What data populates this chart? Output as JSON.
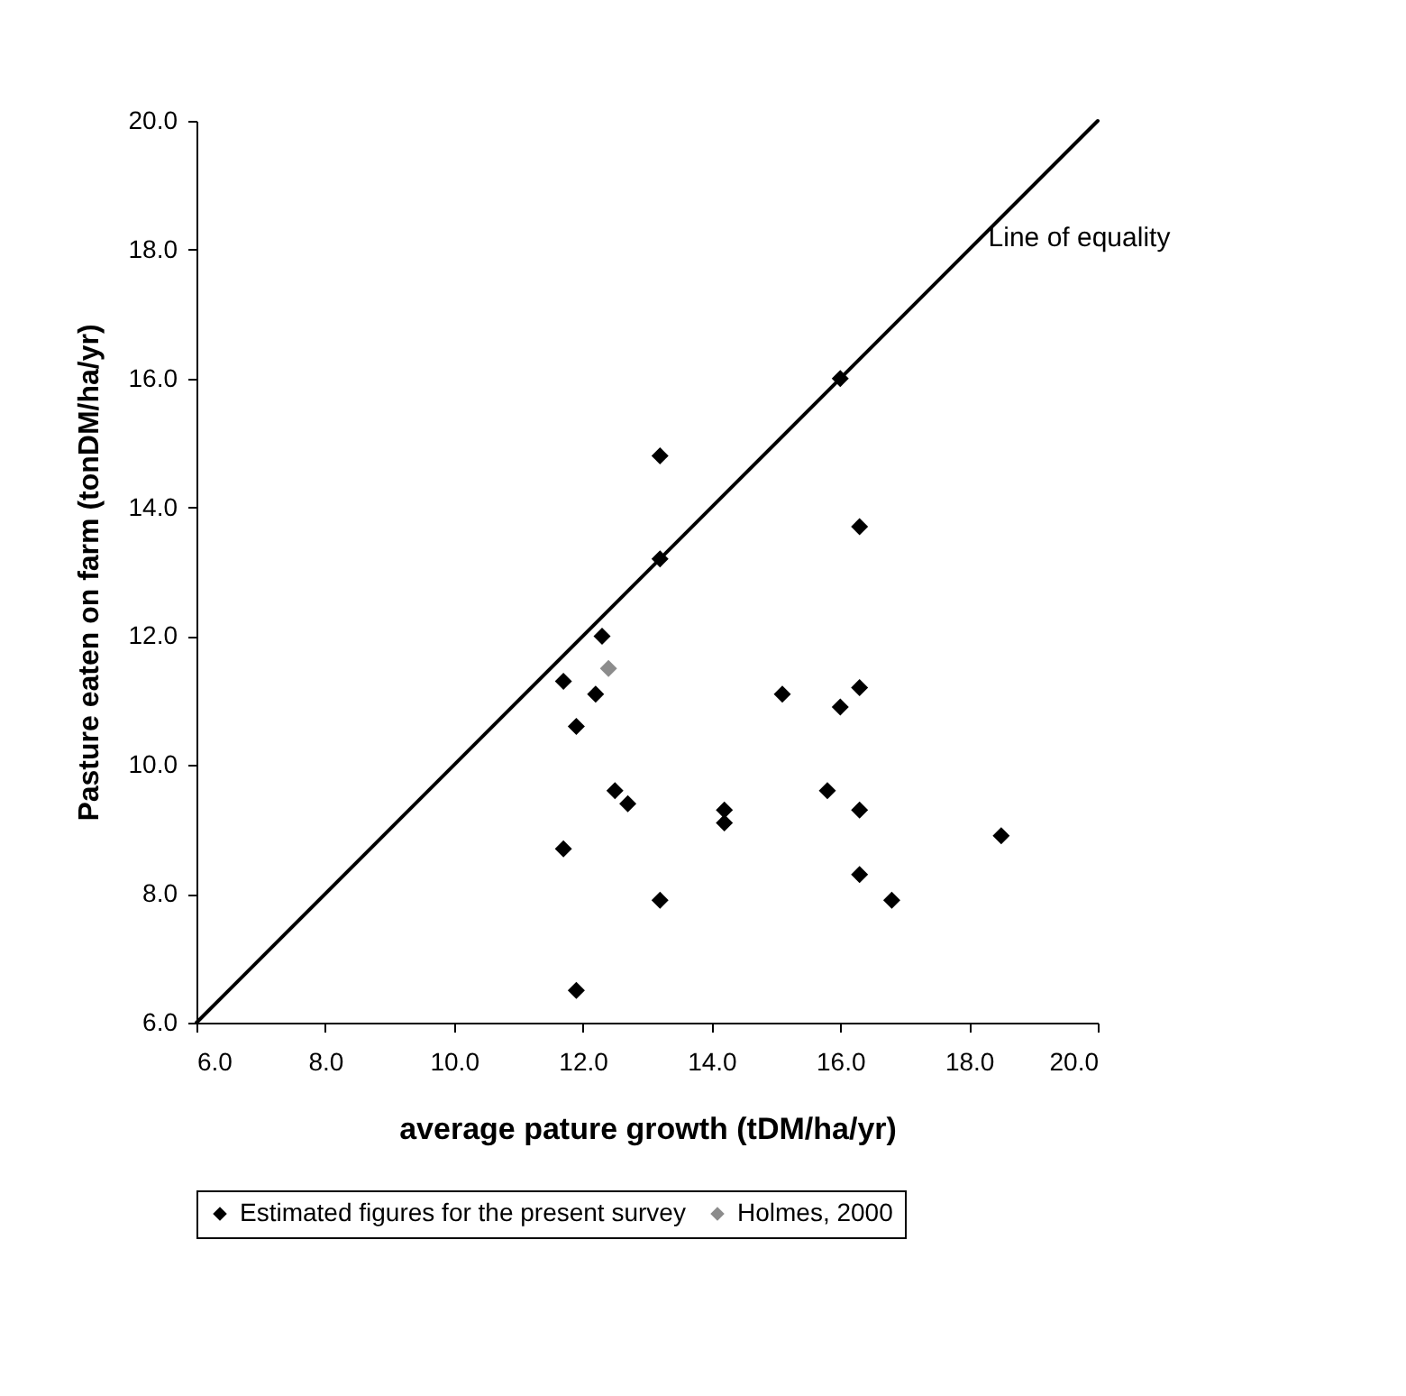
{
  "chart_data": {
    "type": "scatter",
    "xlabel": "average pature growth (tDM/ha/yr)",
    "ylabel": "Pasture eaten on farm (tonDM/ha/yr)",
    "xlim": [
      6,
      20
    ],
    "ylim": [
      6,
      20
    ],
    "xticks": [
      {
        "value": 6,
        "label": "6.0"
      },
      {
        "value": 8,
        "label": "8.0"
      },
      {
        "value": 10,
        "label": "10.0"
      },
      {
        "value": 12,
        "label": "12.0"
      },
      {
        "value": 14,
        "label": "14.0"
      },
      {
        "value": 16,
        "label": "16.0"
      },
      {
        "value": 18,
        "label": "18.0"
      },
      {
        "value": 20,
        "label": "20.0"
      }
    ],
    "yticks": [
      {
        "value": 6,
        "label": "6.0"
      },
      {
        "value": 8,
        "label": "8.0"
      },
      {
        "value": 10,
        "label": "10.0"
      },
      {
        "value": 12,
        "label": "12.0"
      },
      {
        "value": 14,
        "label": "14.0"
      },
      {
        "value": 16,
        "label": "16.0"
      },
      {
        "value": 18,
        "label": "18.0"
      },
      {
        "value": 20,
        "label": "20.0"
      }
    ],
    "grid": false,
    "legend": "bottom",
    "annotations": [
      {
        "text": "Line of equality",
        "x": 18.3,
        "y": 18.2
      }
    ],
    "series": [
      {
        "type": "line",
        "color": "#000000",
        "x": [
          6,
          20
        ],
        "values": [
          6,
          20
        ]
      },
      {
        "name": "Estimated figures for the present survey",
        "color": "#000000",
        "marker": "diamond",
        "x": [
          16.0,
          13.2,
          16.3,
          13.2,
          12.3,
          11.7,
          12.2,
          11.9,
          15.1,
          16.3,
          16.0,
          12.5,
          12.7,
          14.2,
          14.2,
          15.8,
          16.3,
          18.5,
          11.7,
          16.3,
          13.2,
          16.8,
          11.9
        ],
        "values": [
          16.0,
          14.8,
          13.7,
          13.2,
          12.0,
          11.3,
          11.1,
          10.6,
          11.1,
          11.2,
          10.9,
          9.6,
          9.4,
          9.3,
          9.1,
          9.6,
          9.3,
          8.9,
          8.7,
          8.3,
          7.9,
          7.9,
          6.5
        ]
      },
      {
        "name": "Holmes, 2000",
        "color": "#8c8c8c",
        "marker": "diamond",
        "x": [
          12.4
        ],
        "values": [
          11.5
        ]
      }
    ]
  }
}
